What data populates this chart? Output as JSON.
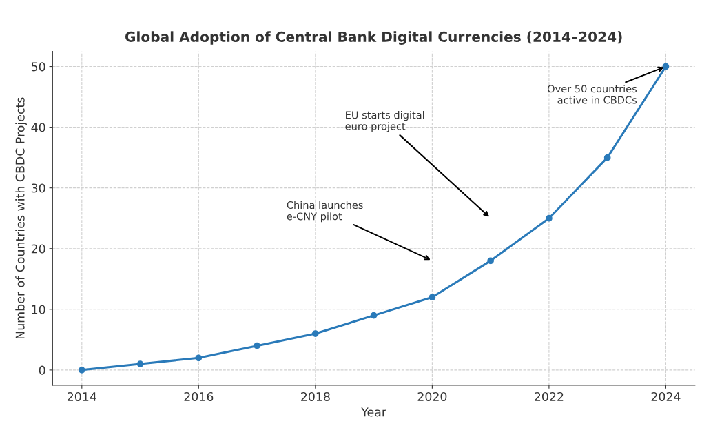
{
  "chart_data": {
    "type": "line",
    "title": "Global Adoption of Central Bank Digital Currencies (2014–2024)",
    "xlabel": "Year",
    "ylabel": "Number of Countries with CBDC Projects",
    "x": [
      2014,
      2015,
      2016,
      2017,
      2018,
      2019,
      2020,
      2021,
      2022,
      2023,
      2024
    ],
    "series": [
      {
        "color": "#2a7ab9",
        "values": [
          0,
          1,
          2,
          4,
          6,
          9,
          12,
          18,
          25,
          35,
          50
        ]
      }
    ],
    "xlim": [
      2013.5,
      2024.5
    ],
    "xticks": [
      2014,
      2016,
      2018,
      2020,
      2022,
      2024
    ],
    "ylim": [
      -2.5,
      52.5
    ],
    "yticks": [
      0,
      10,
      20,
      30,
      40,
      50
    ],
    "annotations": [
      "China launches\ne-CNY pilot",
      "EU starts digital\neuro project",
      {
        "text": "Over 50 countries\nactive in CBDCs",
        "x": 2024,
        "y": 50
      }
    ],
    "grid": true,
    "marker": "circle",
    "line_style": "solid"
  }
}
